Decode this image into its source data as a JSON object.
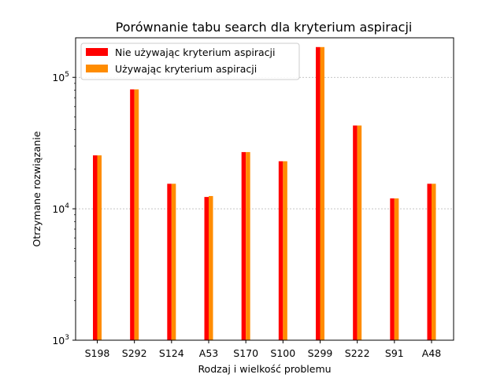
{
  "chart_data": {
    "type": "bar",
    "title": "Porównanie tabu search dla kryterium aspiracji",
    "xlabel": "Rodzaj i wielkość problemu",
    "ylabel": "Otrzymane rozwiązanie",
    "yscale": "log",
    "ylim": [
      1000,
      200000
    ],
    "yticks": [
      {
        "value": 1000,
        "base": "10",
        "exp": "3"
      },
      {
        "value": 10000,
        "base": "10",
        "exp": "4"
      },
      {
        "value": 100000,
        "base": "10",
        "exp": "5"
      }
    ],
    "grid": "y-major-dashed",
    "legend_position": "top-left",
    "categories": [
      "S198",
      "S292",
      "S124",
      "A53",
      "S170",
      "S100",
      "S299",
      "S222",
      "S91",
      "A48"
    ],
    "series": [
      {
        "name": "Nie używając kryterium aspiracji",
        "color": "#ff0000",
        "values": [
          25500,
          81000,
          15500,
          12300,
          27000,
          23000,
          170000,
          43000,
          12000,
          15500
        ]
      },
      {
        "name": "Używając kryterium aspiracji",
        "color": "#ff8c00",
        "values": [
          25500,
          81000,
          15500,
          12500,
          27000,
          23000,
          170000,
          43000,
          12000,
          15500
        ]
      }
    ]
  }
}
